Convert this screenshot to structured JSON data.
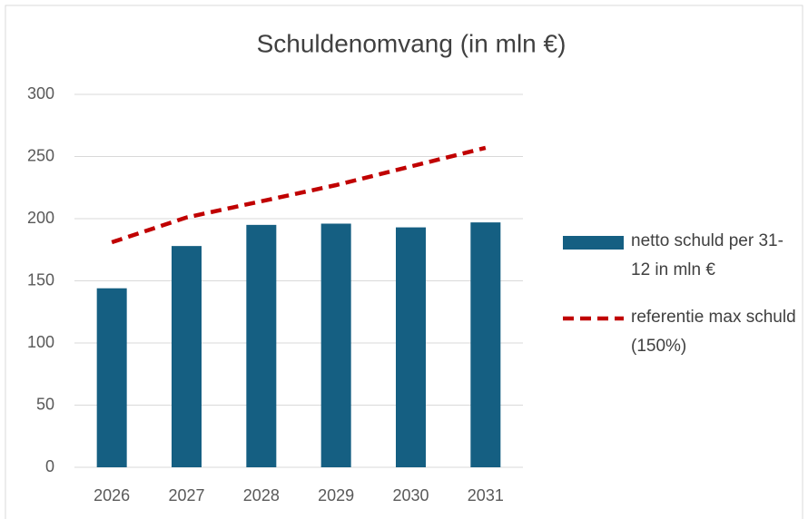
{
  "chart_data": {
    "type": "bar",
    "title": "Schuldenomvang (in mln €)",
    "categories": [
      "2026",
      "2027",
      "2028",
      "2029",
      "2030",
      "2031"
    ],
    "series": [
      {
        "name": "netto schuld per 31-12 in mln €",
        "type": "bar",
        "color": "#155f82",
        "values": [
          144,
          178,
          195,
          196,
          193,
          197
        ]
      },
      {
        "name": "referentie max schuld (150%)",
        "type": "line",
        "dashed": true,
        "color": "#c00000",
        "values": [
          181,
          201,
          214,
          227,
          242,
          257
        ]
      }
    ],
    "ylim": [
      0,
      300
    ],
    "yticks": [
      0,
      50,
      100,
      150,
      200,
      250,
      300
    ],
    "grid": true,
    "legend": "right"
  }
}
